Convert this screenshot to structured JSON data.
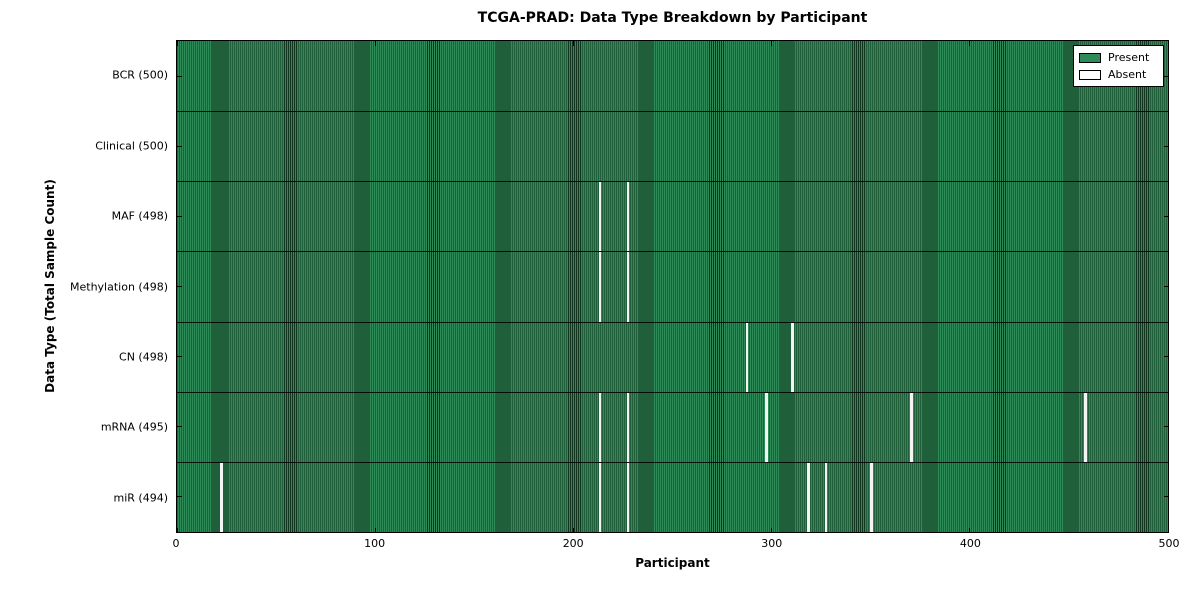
{
  "title": "TCGA-PRAD: Data Type Breakdown by Participant",
  "x_axis": {
    "label": "Participant",
    "tick_labels": [
      "0",
      "100",
      "200",
      "300",
      "400",
      "500"
    ]
  },
  "y_axis": {
    "label": "Data Type (Total Sample Count)"
  },
  "legend": {
    "items": [
      {
        "label": "Present",
        "color": "#2E8B57"
      },
      {
        "label": "Absent",
        "color": "#ffffff"
      }
    ]
  },
  "colors": {
    "present_green": "#2E8B57",
    "bar_edge_dark": "#10361f",
    "absent_white": "#f4f4f4",
    "frame_black": "#000000",
    "background": "#ffffff"
  },
  "chart_data": {
    "type": "heatmap",
    "title": "TCGA-PRAD: Data Type Breakdown by Participant",
    "xlabel": "Participant",
    "ylabel": "Data Type (Total Sample Count)",
    "xlim": [
      0,
      500
    ],
    "x_ticks": [
      0,
      100,
      200,
      300,
      400,
      500
    ],
    "n_participants": 500,
    "legend_position": "upper right",
    "grid": false,
    "rows": [
      {
        "label": "BCR (500)",
        "data_type": "BCR",
        "present_count": 500,
        "absent_participants": []
      },
      {
        "label": "Clinical (500)",
        "data_type": "Clinical",
        "present_count": 500,
        "absent_participants": []
      },
      {
        "label": "MAF (498)",
        "data_type": "MAF",
        "present_count": 498,
        "absent_participants": [
          213,
          227
        ]
      },
      {
        "label": "Methylation (498)",
        "data_type": "Methylation",
        "present_count": 498,
        "absent_participants": [
          213,
          227
        ]
      },
      {
        "label": "CN (498)",
        "data_type": "CN",
        "present_count": 498,
        "absent_participants": [
          287,
          310
        ]
      },
      {
        "label": "mRNA (495)",
        "data_type": "mRNA",
        "present_count": 495,
        "absent_participants": [
          213,
          227,
          297,
          370,
          458
        ]
      },
      {
        "label": "miR (494)",
        "data_type": "miR",
        "present_count": 494,
        "absent_participants": [
          22,
          213,
          227,
          318,
          327,
          350
        ]
      }
    ]
  }
}
